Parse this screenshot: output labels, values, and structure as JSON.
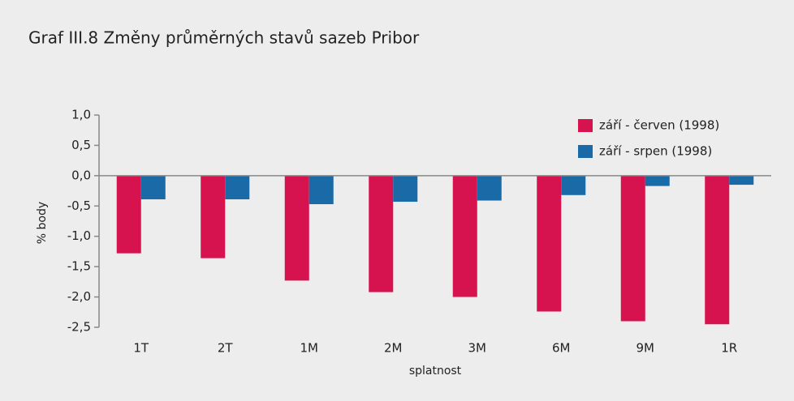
{
  "chart_data": {
    "type": "bar",
    "title": "Graf III.8 Změny průměrných stavů sazeb Pribor",
    "x_label": "splatnost",
    "y_label": "% body",
    "categories": [
      "1T",
      "2T",
      "1M",
      "2M",
      "3M",
      "6M",
      "9M",
      "1R"
    ],
    "series": [
      {
        "name": "září - červen (1998)",
        "color": "#d6134f",
        "values": [
          -1.28,
          -1.36,
          -1.73,
          -1.92,
          -2.0,
          -2.24,
          -2.4,
          -2.45
        ]
      },
      {
        "name": "září - srpen (1998)",
        "color": "#1b6aa8",
        "values": [
          -0.39,
          -0.39,
          -0.47,
          -0.43,
          -0.41,
          -0.32,
          -0.17,
          -0.15
        ]
      }
    ],
    "ylim": [
      -2.5,
      1.0
    ],
    "yticks": [
      {
        "value": 1.0,
        "label": "1,0"
      },
      {
        "value": 0.5,
        "label": "0,5"
      },
      {
        "value": 0.0,
        "label": "0,0"
      },
      {
        "value": -0.5,
        "label": "-0,5"
      },
      {
        "value": -1.0,
        "label": "-1,0"
      },
      {
        "value": -1.5,
        "label": "-1,5"
      },
      {
        "value": -2.0,
        "label": "-2,0"
      },
      {
        "value": -2.5,
        "label": "-2,5"
      }
    ],
    "legend": "upper right"
  }
}
